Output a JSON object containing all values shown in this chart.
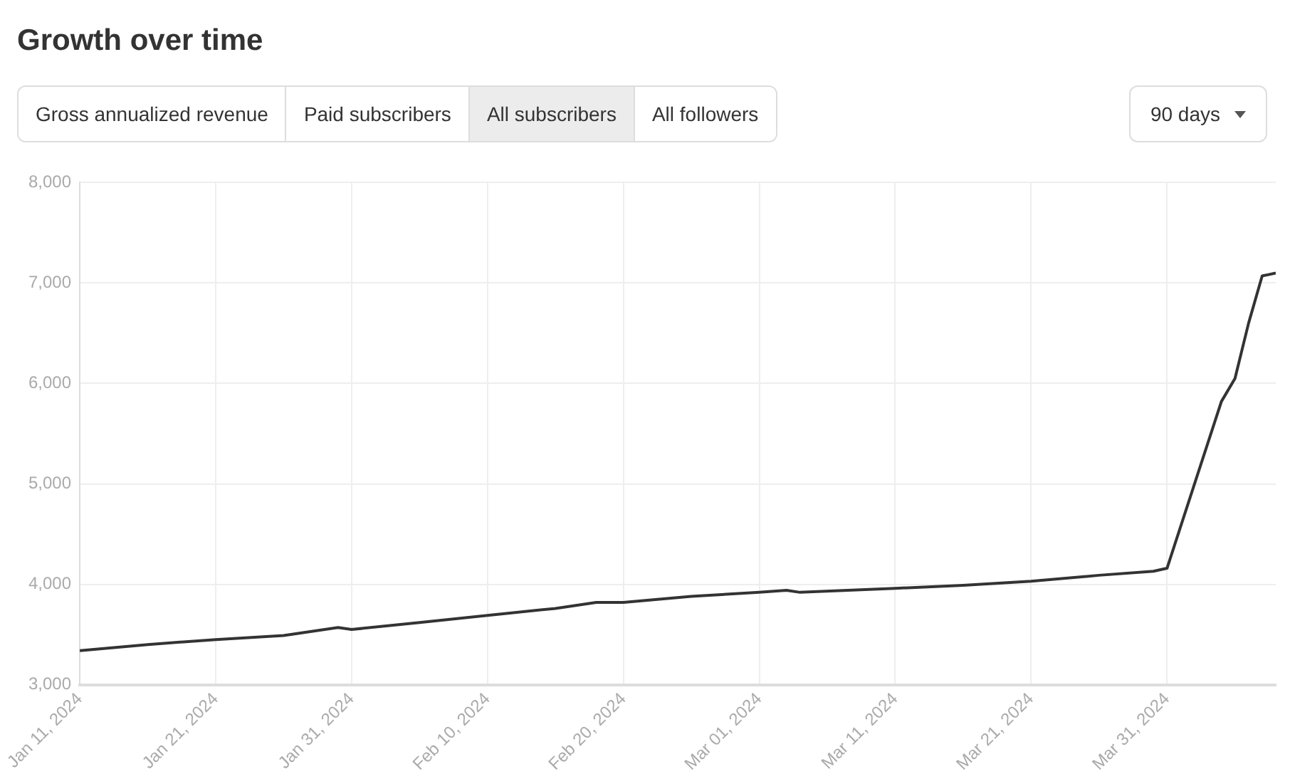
{
  "chart_data": {
    "type": "line",
    "title": "Growth over time",
    "annotations": [
      "Gross annualized revenue",
      "Paid subscribers",
      "All subscribers",
      "All followers",
      "90 days"
    ],
    "x": [
      "2024-01-11",
      "2024-01-16",
      "2024-01-21",
      "2024-01-26",
      "2024-01-30",
      "2024-01-31",
      "2024-02-05",
      "2024-02-10",
      "2024-02-15",
      "2024-02-18",
      "2024-02-20",
      "2024-02-25",
      "2024-03-01",
      "2024-03-03",
      "2024-03-04",
      "2024-03-11",
      "2024-03-16",
      "2024-03-21",
      "2024-03-26",
      "2024-03-30",
      "2024-03-31",
      "2024-04-02",
      "2024-04-04",
      "2024-04-05",
      "2024-04-06",
      "2024-04-07",
      "2024-04-08"
    ],
    "series": [
      {
        "color": "#333333",
        "values": [
          3340,
          3400,
          3450,
          3490,
          3570,
          3550,
          3620,
          3690,
          3760,
          3820,
          3820,
          3880,
          3920,
          3940,
          3920,
          3960,
          3990,
          4030,
          4090,
          4130,
          4160,
          4990,
          5820,
          6050,
          6600,
          7070,
          7100
        ]
      }
    ],
    "xlim": [
      "2024-01-11",
      "2024-04-08"
    ],
    "xticks": [
      {
        "value": "2024-01-11",
        "label": "Jan 11, 2024"
      },
      {
        "value": "2024-01-21",
        "label": "Jan 21, 2024"
      },
      {
        "value": "2024-01-31",
        "label": "Jan 31, 2024"
      },
      {
        "value": "2024-02-10",
        "label": "Feb 10, 2024"
      },
      {
        "value": "2024-02-20",
        "label": "Feb 20, 2024"
      },
      {
        "value": "2024-03-01",
        "label": "Mar 01, 2024"
      },
      {
        "value": "2024-03-11",
        "label": "Mar 11, 2024"
      },
      {
        "value": "2024-03-21",
        "label": "Mar 21, 2024"
      },
      {
        "value": "2024-03-31",
        "label": "Mar 31, 2024"
      }
    ],
    "ylim": [
      3000,
      8000
    ],
    "yticks": [
      {
        "value": 3000,
        "label": "3,000"
      },
      {
        "value": 4000,
        "label": "4,000"
      },
      {
        "value": 5000,
        "label": "5,000"
      },
      {
        "value": 6000,
        "label": "6,000"
      },
      {
        "value": 7000,
        "label": "7,000"
      },
      {
        "value": 8000,
        "label": "8,000"
      }
    ],
    "grid": true,
    "marker": "none",
    "line_style": "solid"
  }
}
